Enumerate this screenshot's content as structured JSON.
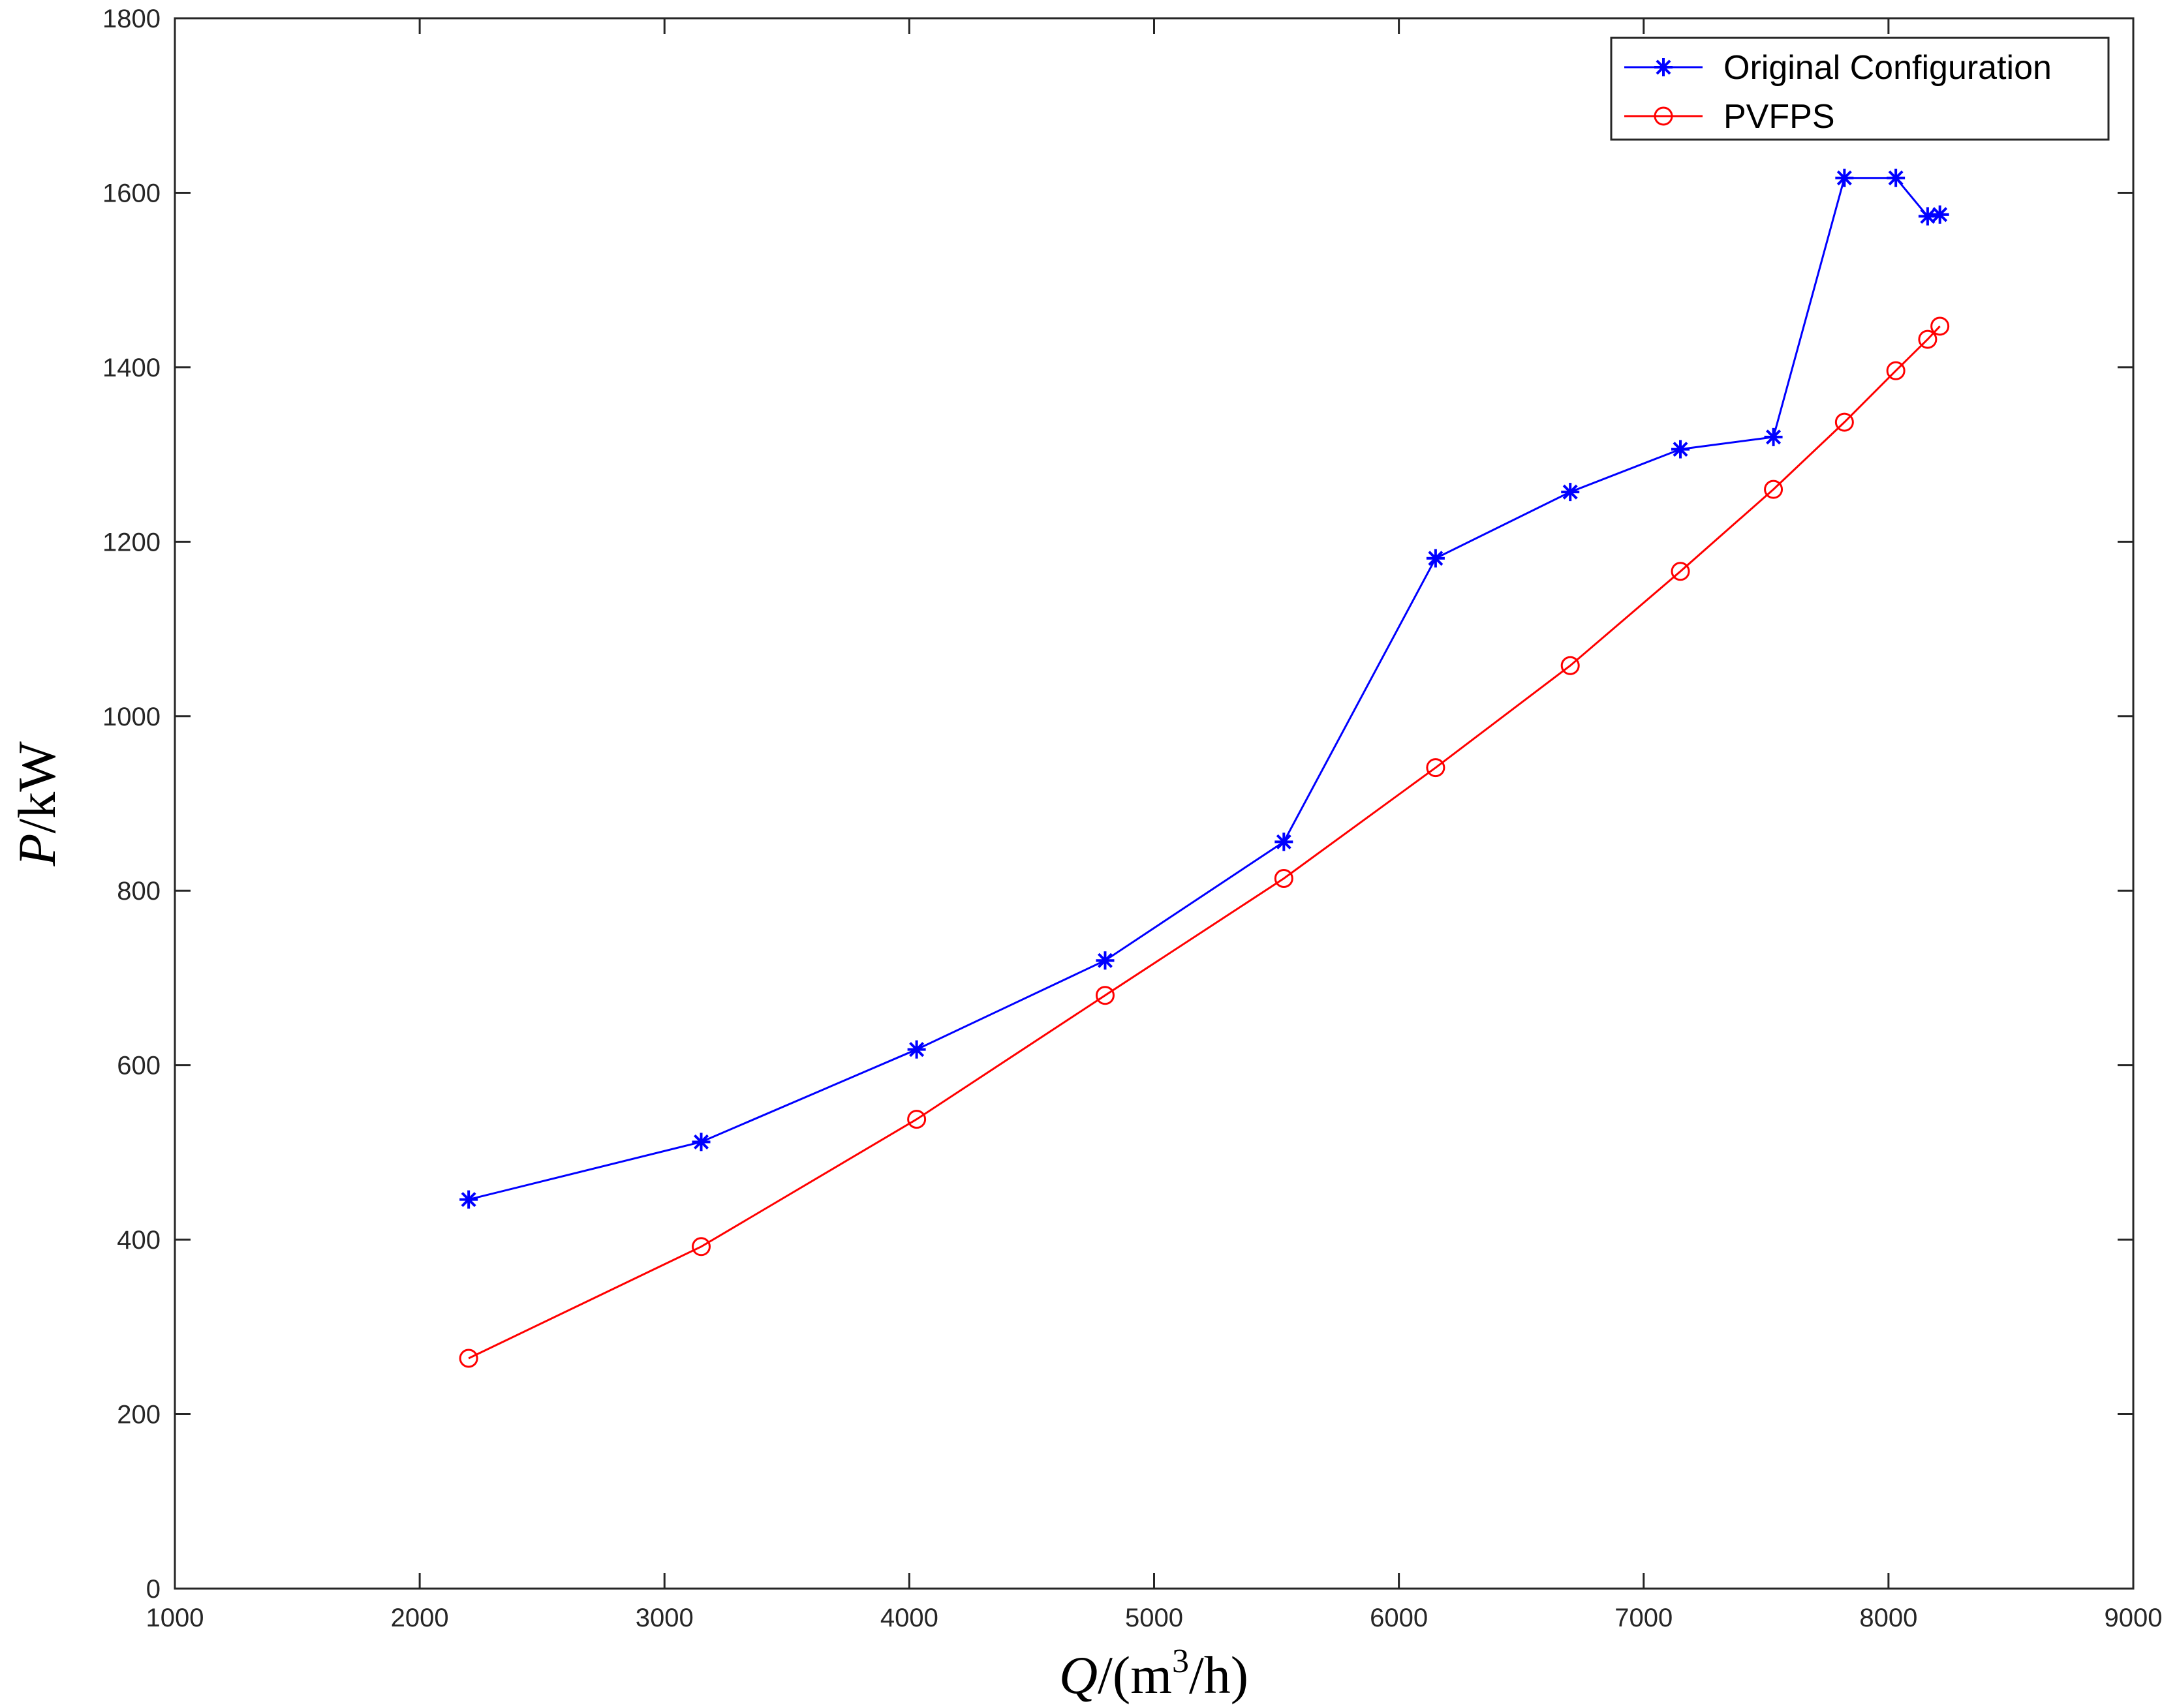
{
  "chart_data": {
    "type": "line",
    "title": "",
    "xlabel": {
      "variable": "Q",
      "unit_prefix": "/(m",
      "unit_superscript": "3",
      "unit_suffix": "/h)"
    },
    "ylabel": {
      "variable": "P",
      "unit": "/kW"
    },
    "xlim": [
      1000,
      9000
    ],
    "ylim": [
      0,
      1800
    ],
    "xticks": [
      1000,
      2000,
      3000,
      4000,
      5000,
      6000,
      7000,
      8000,
      9000
    ],
    "yticks": [
      0,
      200,
      400,
      600,
      800,
      1000,
      1200,
      1400,
      1600,
      1800
    ],
    "grid": false,
    "legend_position": "top-right",
    "series": [
      {
        "name": "Original Configuration",
        "color": "#0000ff",
        "marker": "asterisk",
        "x": [
          2200,
          3150,
          4030,
          4800,
          5530,
          6150,
          6700,
          7150,
          7530,
          7820,
          8030,
          8160,
          8210
        ],
        "y": [
          446,
          512,
          618,
          720,
          856,
          1181,
          1257,
          1306,
          1320,
          1617,
          1617,
          1573,
          1575
        ]
      },
      {
        "name": "PVFPS",
        "color": "#ff0000",
        "marker": "circle",
        "x": [
          2200,
          3150,
          4030,
          4800,
          5530,
          6150,
          6700,
          7150,
          7530,
          7820,
          8030,
          8160,
          8210
        ],
        "y": [
          264,
          392,
          538,
          680,
          814,
          941,
          1058,
          1166,
          1260,
          1337,
          1396,
          1432,
          1447
        ]
      }
    ]
  }
}
